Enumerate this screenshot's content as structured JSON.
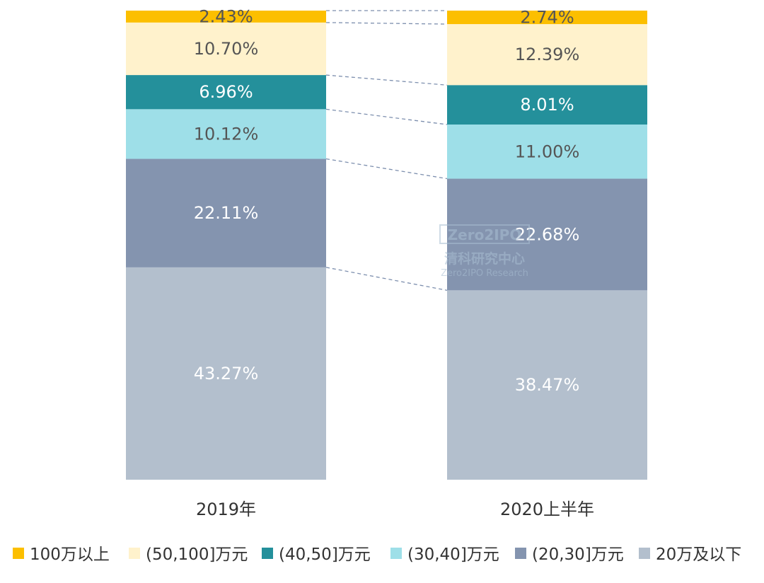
{
  "chart_data": {
    "type": "bar",
    "stacked": true,
    "normalized_percent": true,
    "categories": [
      "2019年",
      "2020上半年"
    ],
    "series": [
      {
        "name": "20万及以下",
        "color": "#b3bfcd",
        "label_color": "#ffffff",
        "values": [
          43.27,
          38.47
        ],
        "labels": [
          "43.27%",
          "38.47%"
        ]
      },
      {
        "name": "(20,30]万元",
        "color": "#8494af",
        "label_color": "#ffffff",
        "values": [
          22.11,
          22.68
        ],
        "labels": [
          "22.11%",
          "22.68%"
        ]
      },
      {
        "name": "(30,40]万元",
        "color": "#9edfe8",
        "label_color": "#555555",
        "values": [
          10.12,
          11.0
        ],
        "labels": [
          "10.12%",
          "11.00%"
        ]
      },
      {
        "name": "(40,50]万元",
        "color": "#24909b",
        "label_color": "#ffffff",
        "values": [
          6.96,
          8.01
        ],
        "labels": [
          "6.96%",
          "8.01%"
        ]
      },
      {
        "name": "(50,100]万元",
        "color": "#fff2cc",
        "label_color": "#555555",
        "values": [
          10.7,
          12.39
        ],
        "labels": [
          "10.70%",
          "12.39%"
        ]
      },
      {
        "name": "100万以上",
        "color": "#fcbf00",
        "label_color": "#555555",
        "values": [
          2.43,
          2.74
        ],
        "labels": [
          "2.43%",
          "2.74%"
        ]
      }
    ],
    "legend_order": [
      "100万以上",
      "(50,100]万元",
      "(40,50]万元",
      "(30,40]万元",
      "(20,30]万元",
      "20万及以下"
    ],
    "legend_position": "bottom",
    "connector_lines": "dashed",
    "grid": false
  },
  "watermark": {
    "logo_text": "Zero2IPO",
    "line1": "清科研究中心",
    "line2": "Zero2IPO Research"
  }
}
